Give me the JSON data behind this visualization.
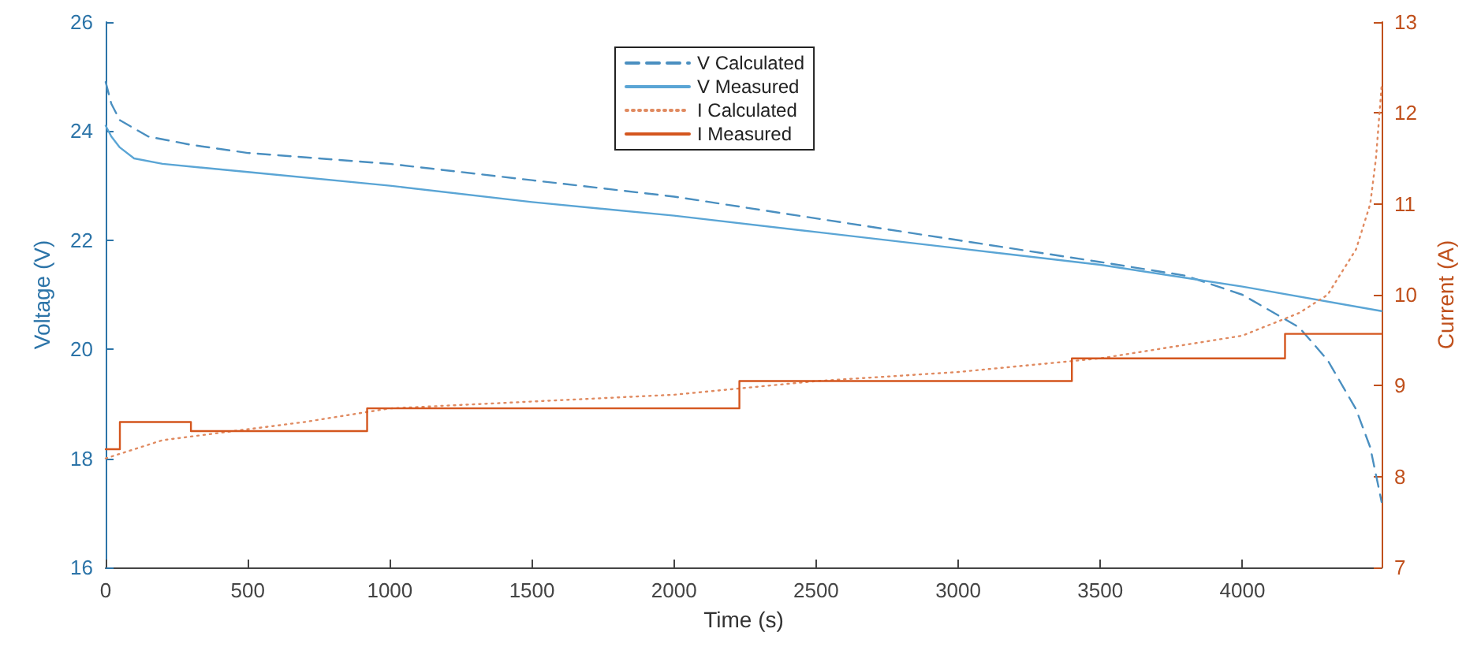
{
  "chart_data": {
    "type": "line",
    "xlabel": "Time (s)",
    "ylabel": "Voltage (V)",
    "y2label": "Current (A)",
    "xlim": [
      0,
      4490
    ],
    "xticks": [
      0,
      500,
      1000,
      1500,
      2000,
      2500,
      3000,
      3500,
      4000
    ],
    "ylim": [
      16,
      26
    ],
    "yticks": [
      16,
      18,
      20,
      22,
      24,
      26
    ],
    "y2lim": [
      7,
      13
    ],
    "y2ticks": [
      7,
      8,
      9,
      10,
      11,
      12,
      13
    ],
    "grid": false,
    "legend": "top",
    "marker": "none",
    "series": [
      {
        "name": "V Calculated",
        "color": "#4a8fc0",
        "line_style": "dashed",
        "x": [
          0,
          20,
          50,
          150,
          300,
          500,
          1000,
          1500,
          2000,
          2500,
          3000,
          3500,
          3800,
          4000,
          4200,
          4300,
          4400,
          4450,
          4490
        ],
        "values": [
          24.9,
          24.5,
          24.2,
          23.9,
          23.75,
          23.6,
          23.4,
          23.1,
          22.8,
          22.4,
          22.0,
          21.6,
          21.35,
          21.0,
          20.4,
          19.8,
          18.9,
          18.2,
          17.2
        ]
      },
      {
        "name": "V Measured",
        "color": "#5aa5d5",
        "line_style": "solid",
        "x": [
          0,
          20,
          50,
          100,
          200,
          500,
          1000,
          1500,
          2000,
          2500,
          3000,
          3500,
          4000,
          4490
        ],
        "values": [
          24.1,
          23.9,
          23.7,
          23.5,
          23.4,
          23.25,
          23.0,
          22.7,
          22.45,
          22.15,
          21.85,
          21.55,
          21.15,
          20.7
        ]
      },
      {
        "name": "I Calculated",
        "color": "#e08a60",
        "line_style": "dotted",
        "axis": "y2",
        "x": [
          0,
          200,
          700,
          1000,
          2000,
          2500,
          3000,
          3500,
          4000,
          4200,
          4300,
          4400,
          4450,
          4470,
          4490
        ],
        "values": [
          8.2,
          8.4,
          8.6,
          8.75,
          8.9,
          9.05,
          9.15,
          9.3,
          9.55,
          9.8,
          10.0,
          10.5,
          11.0,
          11.5,
          12.3
        ]
      },
      {
        "name": "I Measured",
        "color": "#d4561e",
        "type": "step",
        "line_style": "solid",
        "axis": "y2",
        "x": [
          0,
          50,
          300,
          920,
          2230,
          3400,
          4150,
          4490
        ],
        "values": [
          8.3,
          8.6,
          8.5,
          8.75,
          9.05,
          9.3,
          9.57,
          9.57
        ]
      }
    ]
  }
}
